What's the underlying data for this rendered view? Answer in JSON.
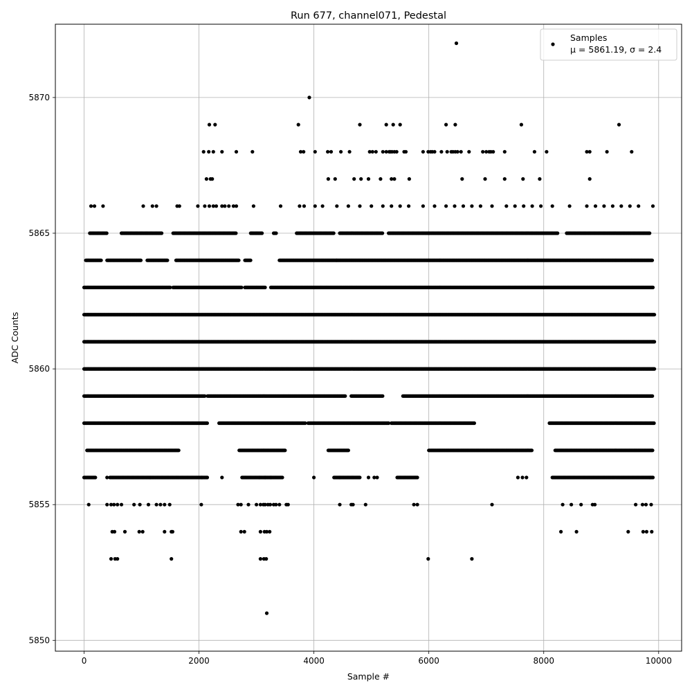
{
  "chart_data": {
    "type": "scatter",
    "title": "Run 677, channel071, Pedestal",
    "xlabel": "Sample #",
    "ylabel": "ADC Counts",
    "xlim": [
      -500,
      10400
    ],
    "ylim": [
      5849.6,
      5872.7
    ],
    "xticks": [
      0,
      2000,
      4000,
      6000,
      8000,
      10000
    ],
    "yticks": [
      5850,
      5855,
      5860,
      5865,
      5870
    ],
    "grid": true,
    "legend_position": "top-right",
    "marker_color": "#000000",
    "series": [
      {
        "name": "Samples",
        "stats_label": "μ = 5861.19, σ = 2.4",
        "mean": 5861.19,
        "sigma": 2.4,
        "sample_count": 10000,
        "level_bands": [
          {
            "value": 5865,
            "ranges": [
              [
                100,
                400
              ],
              [
                650,
                1350
              ],
              [
                1550,
                2650
              ],
              [
                2900,
                3100
              ],
              [
                3300,
                3350
              ],
              [
                3700,
                4350
              ],
              [
                4450,
                5200
              ],
              [
                5300,
                6000
              ],
              [
                6000,
                8250
              ],
              [
                8400,
                9850
              ]
            ]
          },
          {
            "value": 5864,
            "ranges": [
              [
                30,
                300
              ],
              [
                400,
                1000
              ],
              [
                1100,
                1450
              ],
              [
                1600,
                2700
              ],
              [
                2800,
                2900
              ],
              [
                3400,
                4400
              ],
              [
                4400,
                9900
              ]
            ]
          },
          {
            "value": 5863,
            "ranges": [
              [
                0,
                1500
              ],
              [
                1550,
                2750
              ],
              [
                2800,
                3150
              ],
              [
                3250,
                9900
              ]
            ]
          },
          {
            "value": 5862,
            "ranges": [
              [
                0,
                9930
              ]
            ]
          },
          {
            "value": 5861,
            "ranges": [
              [
                0,
                9930
              ]
            ]
          },
          {
            "value": 5860,
            "ranges": [
              [
                0,
                9930
              ]
            ]
          },
          {
            "value": 5859,
            "ranges": [
              [
                0,
                2100
              ],
              [
                2150,
                4550
              ],
              [
                4650,
                5200
              ],
              [
                5550,
                9900
              ]
            ]
          },
          {
            "value": 5858,
            "ranges": [
              [
                0,
                2150
              ],
              [
                2350,
                3850
              ],
              [
                3900,
                5300
              ],
              [
                5350,
                6800
              ],
              [
                8100,
                9930
              ]
            ]
          },
          {
            "value": 5857,
            "ranges": [
              [
                50,
                1650
              ],
              [
                2700,
                3500
              ],
              [
                4250,
                4600
              ],
              [
                6000,
                7800
              ],
              [
                8200,
                9900
              ]
            ]
          },
          {
            "value": 5856,
            "ranges": [
              [
                0,
                200
              ],
              [
                450,
                2150
              ],
              [
                2750,
                3450
              ],
              [
                4350,
                4800
              ],
              [
                5450,
                5800
              ],
              [
                8150,
                9900
              ]
            ]
          }
        ],
        "points": [
          [
            6480,
            5872
          ],
          [
            3920,
            5870
          ],
          [
            2180,
            5869
          ],
          [
            2280,
            5869
          ],
          [
            3730,
            5869
          ],
          [
            4800,
            5869
          ],
          [
            5260,
            5869
          ],
          [
            5380,
            5869
          ],
          [
            5500,
            5869
          ],
          [
            6300,
            5869
          ],
          [
            6460,
            5869
          ],
          [
            7610,
            5869
          ],
          [
            9310,
            5869
          ],
          [
            2080,
            5868
          ],
          [
            2170,
            5868
          ],
          [
            2250,
            5868
          ],
          [
            2400,
            5868
          ],
          [
            2650,
            5868
          ],
          [
            2930,
            5868
          ],
          [
            3770,
            5868
          ],
          [
            3820,
            5868
          ],
          [
            4020,
            5868
          ],
          [
            4240,
            5868
          ],
          [
            4300,
            5868
          ],
          [
            4470,
            5868
          ],
          [
            4620,
            5868
          ],
          [
            4970,
            5868
          ],
          [
            5020,
            5868
          ],
          [
            5080,
            5868
          ],
          [
            5200,
            5868
          ],
          [
            5260,
            5868
          ],
          [
            5310,
            5868
          ],
          [
            5330,
            5868
          ],
          [
            5360,
            5868
          ],
          [
            5400,
            5868
          ],
          [
            5440,
            5868
          ],
          [
            5570,
            5868
          ],
          [
            5600,
            5868
          ],
          [
            5900,
            5868
          ],
          [
            5990,
            5868
          ],
          [
            6030,
            5868
          ],
          [
            6060,
            5868
          ],
          [
            6100,
            5868
          ],
          [
            6220,
            5868
          ],
          [
            6320,
            5868
          ],
          [
            6390,
            5868
          ],
          [
            6420,
            5868
          ],
          [
            6460,
            5868
          ],
          [
            6500,
            5868
          ],
          [
            6560,
            5868
          ],
          [
            6700,
            5868
          ],
          [
            6940,
            5868
          ],
          [
            7000,
            5868
          ],
          [
            7050,
            5868
          ],
          [
            7080,
            5868
          ],
          [
            7120,
            5868
          ],
          [
            7320,
            5868
          ],
          [
            7840,
            5868
          ],
          [
            8050,
            5868
          ],
          [
            8750,
            5868
          ],
          [
            8800,
            5868
          ],
          [
            9100,
            5868
          ],
          [
            9530,
            5868
          ],
          [
            2130,
            5867
          ],
          [
            2200,
            5867
          ],
          [
            2230,
            5867
          ],
          [
            4250,
            5867
          ],
          [
            4370,
            5867
          ],
          [
            4700,
            5867
          ],
          [
            4820,
            5867
          ],
          [
            4950,
            5867
          ],
          [
            5160,
            5867
          ],
          [
            5350,
            5867
          ],
          [
            5400,
            5867
          ],
          [
            5660,
            5867
          ],
          [
            6580,
            5867
          ],
          [
            6980,
            5867
          ],
          [
            7320,
            5867
          ],
          [
            7640,
            5867
          ],
          [
            7930,
            5867
          ],
          [
            8800,
            5867
          ],
          [
            120,
            5866
          ],
          [
            180,
            5866
          ],
          [
            330,
            5866
          ],
          [
            1030,
            5866
          ],
          [
            1190,
            5866
          ],
          [
            1260,
            5866
          ],
          [
            1620,
            5866
          ],
          [
            1660,
            5866
          ],
          [
            1980,
            5866
          ],
          [
            2100,
            5866
          ],
          [
            2180,
            5866
          ],
          [
            2250,
            5866
          ],
          [
            2300,
            5866
          ],
          [
            2400,
            5866
          ],
          [
            2450,
            5866
          ],
          [
            2520,
            5866
          ],
          [
            2600,
            5866
          ],
          [
            2650,
            5866
          ],
          [
            2950,
            5866
          ],
          [
            3420,
            5866
          ],
          [
            3750,
            5866
          ],
          [
            3830,
            5866
          ],
          [
            4020,
            5866
          ],
          [
            4150,
            5866
          ],
          [
            4400,
            5866
          ],
          [
            4600,
            5866
          ],
          [
            4800,
            5866
          ],
          [
            5000,
            5866
          ],
          [
            5200,
            5866
          ],
          [
            5350,
            5866
          ],
          [
            5500,
            5866
          ],
          [
            5650,
            5866
          ],
          [
            5900,
            5866
          ],
          [
            6100,
            5866
          ],
          [
            6300,
            5866
          ],
          [
            6450,
            5866
          ],
          [
            6600,
            5866
          ],
          [
            6750,
            5866
          ],
          [
            6900,
            5866
          ],
          [
            7100,
            5866
          ],
          [
            7350,
            5866
          ],
          [
            7500,
            5866
          ],
          [
            7650,
            5866
          ],
          [
            7800,
            5866
          ],
          [
            7950,
            5866
          ],
          [
            8150,
            5866
          ],
          [
            8450,
            5866
          ],
          [
            8750,
            5866
          ],
          [
            8900,
            5866
          ],
          [
            9050,
            5866
          ],
          [
            9200,
            5866
          ],
          [
            9350,
            5866
          ],
          [
            9500,
            5866
          ],
          [
            9650,
            5866
          ],
          [
            9900,
            5866
          ],
          [
            400,
            5856
          ],
          [
            1150,
            5856
          ],
          [
            2050,
            5856
          ],
          [
            2400,
            5856
          ],
          [
            3050,
            5856
          ],
          [
            3150,
            5856
          ],
          [
            3250,
            5856
          ],
          [
            4000,
            5856
          ],
          [
            4450,
            5856
          ],
          [
            4950,
            5856
          ],
          [
            5050,
            5856
          ],
          [
            5100,
            5856
          ],
          [
            7550,
            5856
          ],
          [
            7630,
            5856
          ],
          [
            7700,
            5856
          ],
          [
            9850,
            5856
          ],
          [
            80,
            5855
          ],
          [
            400,
            5855
          ],
          [
            470,
            5855
          ],
          [
            520,
            5855
          ],
          [
            580,
            5855
          ],
          [
            650,
            5855
          ],
          [
            870,
            5855
          ],
          [
            970,
            5855
          ],
          [
            1120,
            5855
          ],
          [
            1260,
            5855
          ],
          [
            1330,
            5855
          ],
          [
            1400,
            5855
          ],
          [
            1490,
            5855
          ],
          [
            2040,
            5855
          ],
          [
            2680,
            5855
          ],
          [
            2730,
            5855
          ],
          [
            2860,
            5855
          ],
          [
            3000,
            5855
          ],
          [
            3070,
            5855
          ],
          [
            3120,
            5855
          ],
          [
            3150,
            5855
          ],
          [
            3200,
            5855
          ],
          [
            3240,
            5855
          ],
          [
            3300,
            5855
          ],
          [
            3340,
            5855
          ],
          [
            3400,
            5855
          ],
          [
            3520,
            5855
          ],
          [
            3550,
            5855
          ],
          [
            4450,
            5855
          ],
          [
            4650,
            5855
          ],
          [
            4680,
            5855
          ],
          [
            4900,
            5855
          ],
          [
            5740,
            5855
          ],
          [
            5800,
            5855
          ],
          [
            7100,
            5855
          ],
          [
            8330,
            5855
          ],
          [
            8480,
            5855
          ],
          [
            8650,
            5855
          ],
          [
            8850,
            5855
          ],
          [
            8890,
            5855
          ],
          [
            9600,
            5855
          ],
          [
            9720,
            5855
          ],
          [
            9780,
            5855
          ],
          [
            9870,
            5855
          ],
          [
            490,
            5854
          ],
          [
            530,
            5854
          ],
          [
            710,
            5854
          ],
          [
            960,
            5854
          ],
          [
            1020,
            5854
          ],
          [
            1400,
            5854
          ],
          [
            1520,
            5854
          ],
          [
            1540,
            5854
          ],
          [
            2730,
            5854
          ],
          [
            2790,
            5854
          ],
          [
            3070,
            5854
          ],
          [
            3140,
            5854
          ],
          [
            3180,
            5854
          ],
          [
            3230,
            5854
          ],
          [
            8300,
            5854
          ],
          [
            8570,
            5854
          ],
          [
            9470,
            5854
          ],
          [
            9730,
            5854
          ],
          [
            9790,
            5854
          ],
          [
            9880,
            5854
          ],
          [
            470,
            5853
          ],
          [
            540,
            5853
          ],
          [
            580,
            5853
          ],
          [
            1520,
            5853
          ],
          [
            3070,
            5853
          ],
          [
            3130,
            5853
          ],
          [
            3170,
            5853
          ],
          [
            5990,
            5853
          ],
          [
            6750,
            5853
          ],
          [
            3180,
            5851
          ]
        ]
      }
    ]
  }
}
